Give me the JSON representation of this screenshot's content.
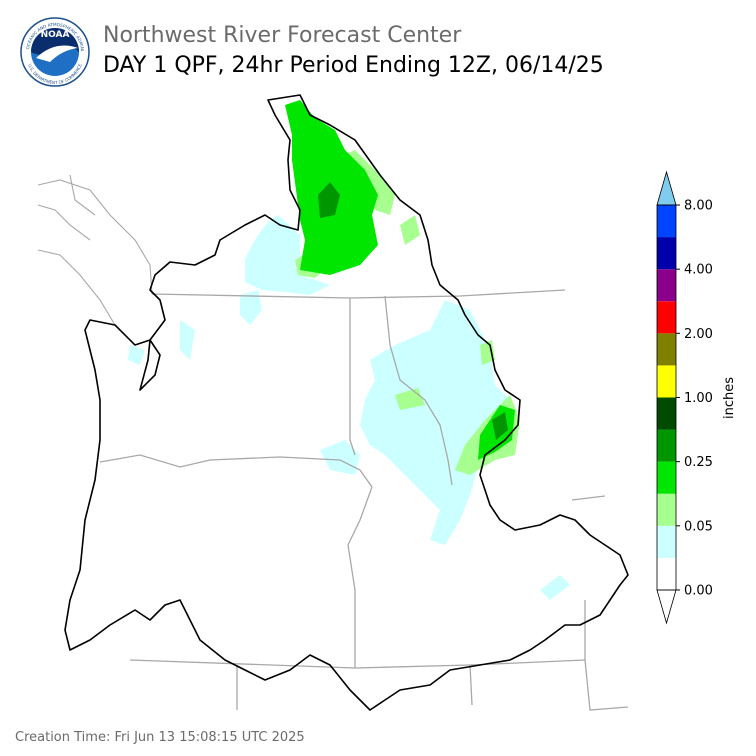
{
  "header": {
    "logo": {
      "name": "NOAA",
      "ring_top": "NATIONAL OCEANIC AND ATMOSPHERIC ADMINISTRATION",
      "ring_bottom": "U.S. DEPARTMENT OF COMMERCE"
    },
    "organization": "Northwest River Forecast Center",
    "title": "DAY 1 QPF, 24hr Period Ending 12Z, 06/14/25"
  },
  "colorbar": {
    "label": "inches",
    "ticks": [
      {
        "value": 0,
        "label": "0.00"
      },
      {
        "value": 0.05,
        "label": "0.05"
      },
      {
        "value": 0.25,
        "label": "0.25"
      },
      {
        "value": 1,
        "label": "1.00"
      },
      {
        "value": 2,
        "label": "2.00"
      },
      {
        "value": 4,
        "label": "4.00"
      },
      {
        "value": 8,
        "label": "8.00"
      }
    ],
    "colors": [
      "#ffffff",
      "#ccffff",
      "#a6ff8f",
      "#00e600",
      "#009600",
      "#004b00",
      "#ffff00",
      "#808000",
      "#ff0000",
      "#8b008b",
      "#0000aa",
      "#0044ff"
    ],
    "under_color": "#ffffff",
    "over_color": "#80ccee"
  },
  "footer": "Creation Time: Fri Jun 13 15:08:15 UTC 2025"
}
